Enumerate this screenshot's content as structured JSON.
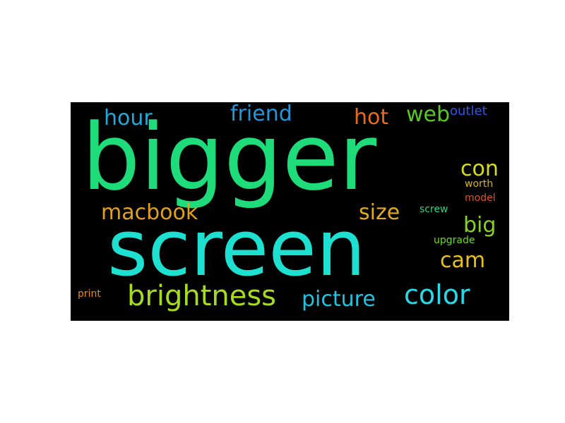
{
  "cloud": {
    "background": "#000000",
    "words": [
      {
        "text": "bigger",
        "color": "#1fdc7a"
      },
      {
        "text": "screen",
        "color": "#1ee0d0"
      },
      {
        "text": "brightness",
        "color": "#a6dc1f"
      },
      {
        "text": "picture",
        "color": "#22c2e0"
      },
      {
        "text": "color",
        "color": "#2ad8e6"
      },
      {
        "text": "macbook",
        "color": "#e0a020"
      },
      {
        "text": "size",
        "color": "#e0aa22"
      },
      {
        "text": "hour",
        "color": "#25a8d8"
      },
      {
        "text": "friend",
        "color": "#2596d8"
      },
      {
        "text": "hot",
        "color": "#e86a1c"
      },
      {
        "text": "web",
        "color": "#59c91f"
      },
      {
        "text": "outlet",
        "color": "#2f55e8"
      },
      {
        "text": "con",
        "color": "#d6dc1f"
      },
      {
        "text": "big",
        "color": "#8ad21f"
      },
      {
        "text": "cam",
        "color": "#e8c01c"
      },
      {
        "text": "worth",
        "color": "#d8b41c"
      },
      {
        "text": "model",
        "color": "#e8501c"
      },
      {
        "text": "screw",
        "color": "#2fd680"
      },
      {
        "text": "upgrade",
        "color": "#6fd81f"
      },
      {
        "text": "print",
        "color": "#e88a1c"
      }
    ]
  }
}
